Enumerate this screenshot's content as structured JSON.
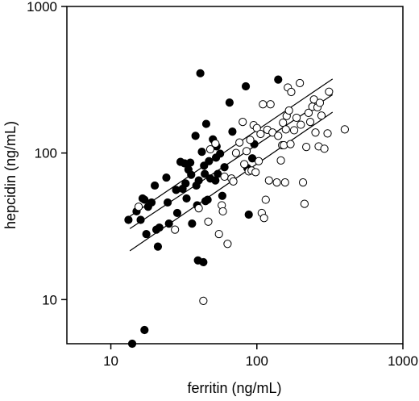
{
  "chart_data": {
    "type": "scatter",
    "title": "",
    "xlabel": "ferritin (ng/mL)",
    "ylabel": "hepcidin (ng/mL)",
    "xscale": "log",
    "yscale": "log",
    "xlim": [
      5,
      1000
    ],
    "ylim": [
      5,
      1000
    ],
    "xticks": [
      10,
      100,
      1000
    ],
    "yticks": [
      10,
      100,
      1000
    ],
    "xtick_labels": [
      "10",
      "100",
      "1000"
    ],
    "ytick_labels": [
      "10",
      "100",
      "1000"
    ],
    "grid": false,
    "legend": "none",
    "series": [
      {
        "marker": "filled-circle",
        "color": "#000000",
        "points": [
          [
            13.2,
            35
          ],
          [
            15,
            40
          ],
          [
            16,
            35
          ],
          [
            16.5,
            49
          ],
          [
            17,
            48
          ],
          [
            17.5,
            28
          ],
          [
            18,
            43
          ],
          [
            19,
            46
          ],
          [
            20,
            60
          ],
          [
            20.5,
            30
          ],
          [
            21,
            23
          ],
          [
            21.5,
            31
          ],
          [
            24,
            68
          ],
          [
            24.5,
            46
          ],
          [
            25,
            33
          ],
          [
            28,
            56
          ],
          [
            28.5,
            39
          ],
          [
            30,
            87
          ],
          [
            31,
            57
          ],
          [
            32,
            85
          ],
          [
            32.5,
            62
          ],
          [
            33,
            49
          ],
          [
            34,
            77
          ],
          [
            35,
            86
          ],
          [
            35.5,
            71
          ],
          [
            36,
            33
          ],
          [
            38,
            131
          ],
          [
            38.5,
            60
          ],
          [
            39,
            44
          ],
          [
            39.5,
            18.5
          ],
          [
            40,
            65
          ],
          [
            41,
            350
          ],
          [
            42,
            102
          ],
          [
            43,
            18
          ],
          [
            43.5,
            82
          ],
          [
            44,
            72
          ],
          [
            44.5,
            47
          ],
          [
            45,
            158
          ],
          [
            46,
            48
          ],
          [
            47,
            88
          ],
          [
            48,
            67
          ],
          [
            50,
            124
          ],
          [
            52,
            65
          ],
          [
            52.5,
            93
          ],
          [
            53,
            111
          ],
          [
            54,
            72
          ],
          [
            56,
            99
          ],
          [
            58,
            51
          ],
          [
            60,
            80
          ],
          [
            65,
            221
          ],
          [
            68,
            140
          ],
          [
            84,
            285
          ],
          [
            86,
            79
          ],
          [
            88,
            38
          ],
          [
            93,
            92
          ],
          [
            96,
            115
          ],
          [
            140,
            317
          ],
          [
            17,
            6.2
          ],
          [
            14,
            5
          ]
        ]
      },
      {
        "marker": "open-circle",
        "color": "#000000",
        "points": [
          [
            15.5,
            43
          ],
          [
            27.5,
            30
          ],
          [
            40,
            42
          ],
          [
            43,
            9.8
          ],
          [
            46.5,
            34
          ],
          [
            48,
            106
          ],
          [
            52,
            116
          ],
          [
            55,
            28
          ],
          [
            57.5,
            44
          ],
          [
            58.5,
            40
          ],
          [
            60,
            69
          ],
          [
            63,
            24
          ],
          [
            67,
            67
          ],
          [
            69,
            64
          ],
          [
            72,
            100
          ],
          [
            76,
            118
          ],
          [
            80,
            163
          ],
          [
            82,
            84
          ],
          [
            85,
            103
          ],
          [
            88,
            75
          ],
          [
            90,
            123
          ],
          [
            92,
            76
          ],
          [
            95,
            155
          ],
          [
            98,
            74
          ],
          [
            100,
            148
          ],
          [
            103,
            88
          ],
          [
            106,
            135
          ],
          [
            108,
            39
          ],
          [
            110,
            215
          ],
          [
            112,
            36
          ],
          [
            115,
            48
          ],
          [
            118,
            144
          ],
          [
            121,
            65
          ],
          [
            124,
            215
          ],
          [
            128,
            138
          ],
          [
            137,
            63
          ],
          [
            140,
            131
          ],
          [
            146,
            89
          ],
          [
            149,
            113
          ],
          [
            151,
            161
          ],
          [
            153,
            113
          ],
          [
            156,
            63
          ],
          [
            158,
            145
          ],
          [
            160,
            179
          ],
          [
            163,
            280
          ],
          [
            166,
            195
          ],
          [
            170,
            115
          ],
          [
            172,
            261
          ],
          [
            180,
            143
          ],
          [
            187,
            174
          ],
          [
            197,
            300
          ],
          [
            200,
            156
          ],
          [
            207,
            63
          ],
          [
            212,
            45
          ],
          [
            218,
            110
          ],
          [
            226,
            188
          ],
          [
            232,
            163
          ],
          [
            240,
            207
          ],
          [
            246,
            232
          ],
          [
            252,
            138
          ],
          [
            260,
            205
          ],
          [
            265,
            111
          ],
          [
            270,
            220
          ],
          [
            277,
            180
          ],
          [
            290,
            107
          ],
          [
            305,
            136
          ],
          [
            312,
            262
          ],
          [
            400,
            145
          ]
        ]
      }
    ],
    "lines": [
      {
        "role": "regression",
        "points": [
          [
            13.5,
            30.5
          ],
          [
            330,
            250
          ]
        ]
      },
      {
        "role": "confidence-upper",
        "points": [
          [
            13.5,
            37
          ],
          [
            330,
            320
          ]
        ]
      },
      {
        "role": "confidence-lower",
        "points": [
          [
            13.5,
            21.5
          ],
          [
            330,
            190
          ]
        ]
      }
    ]
  }
}
